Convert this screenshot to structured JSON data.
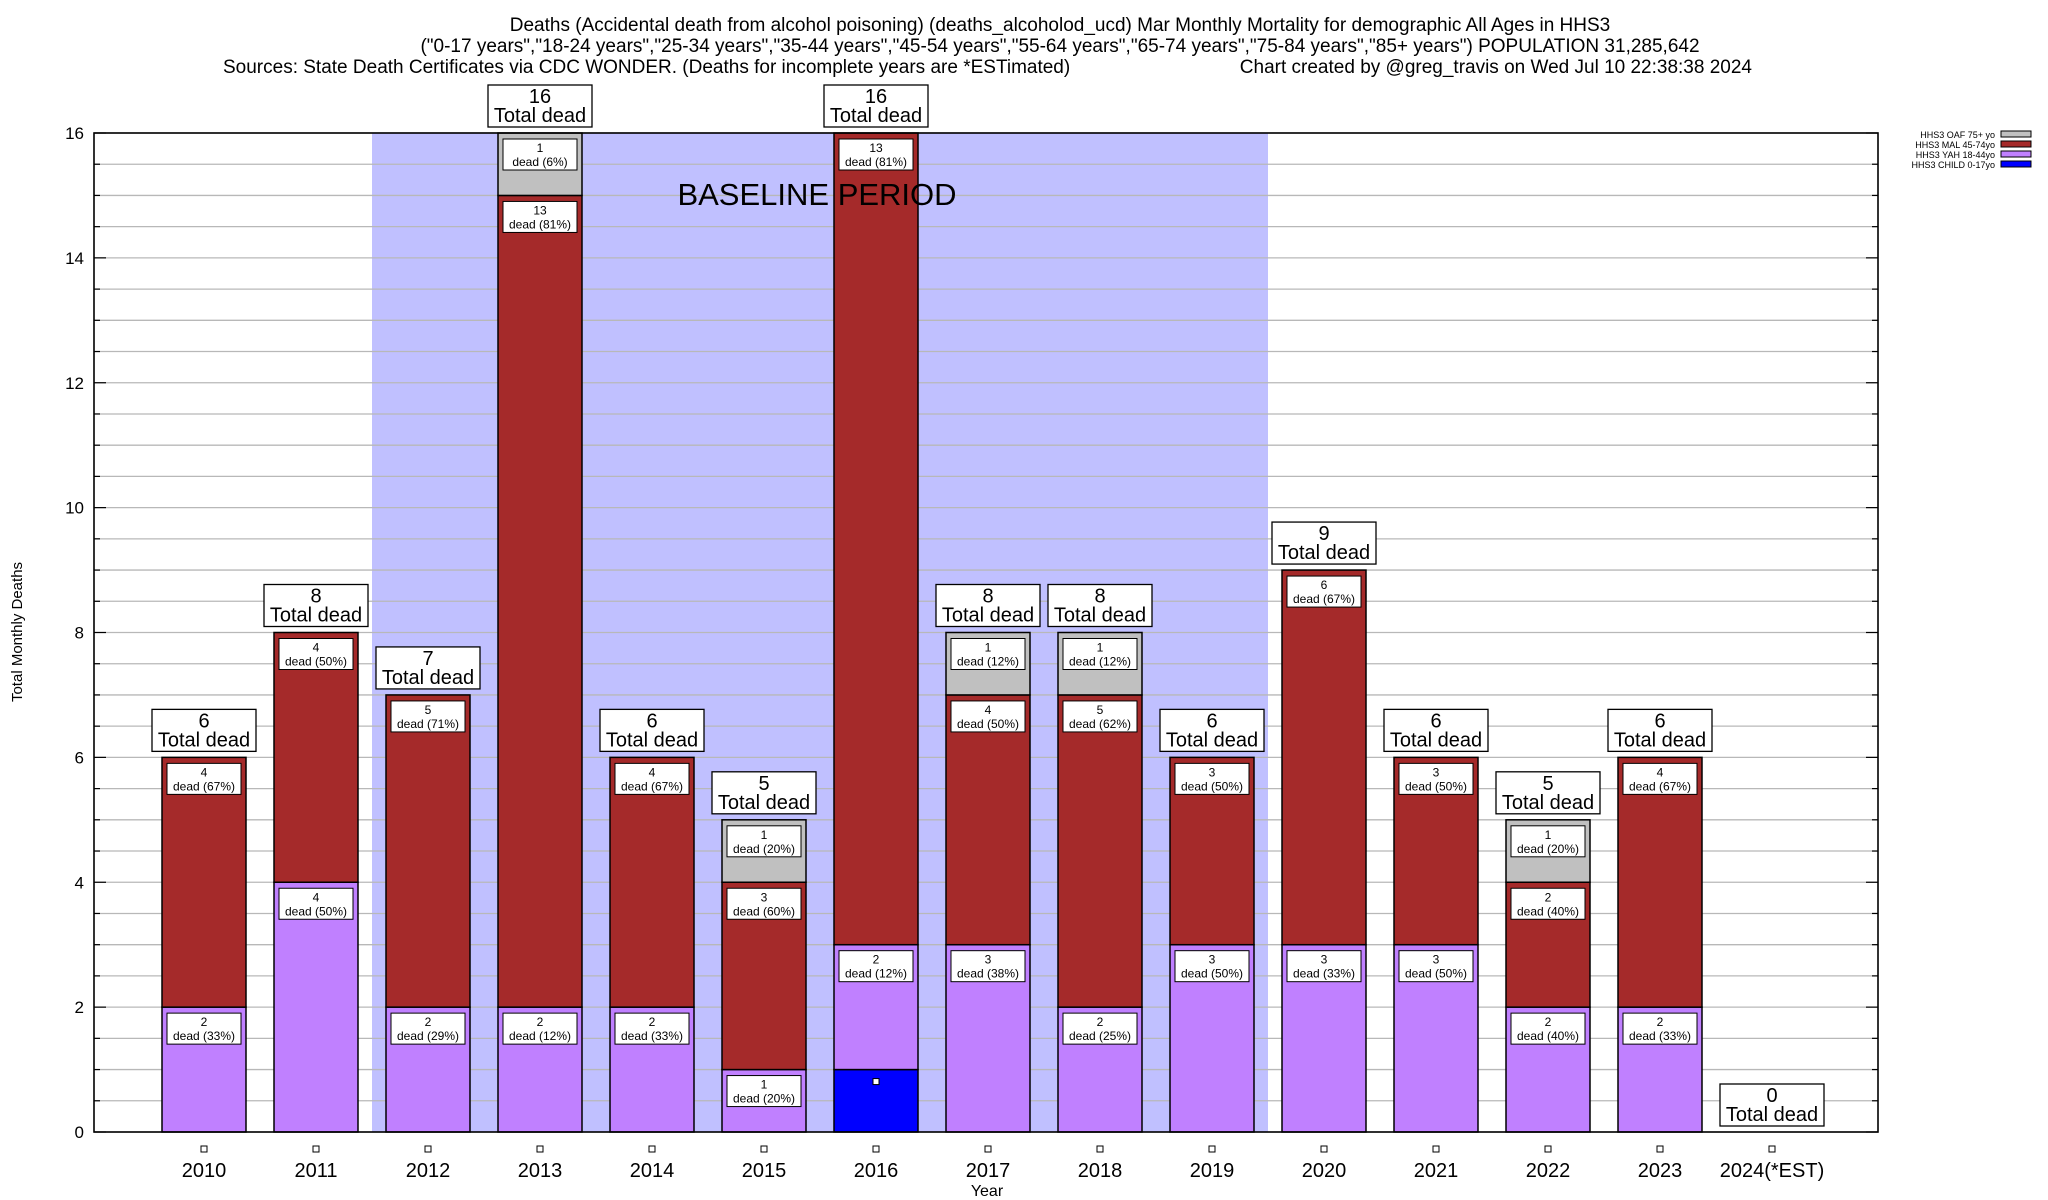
{
  "chart_data": {
    "type": "bar",
    "stacked": true,
    "title": [
      "Deaths (Accidental death from alcohol poisoning) (deaths_alcoholod_ucd) Mar Monthly Mortality for demographic All Ages in HHS3",
      "(\"0-17 years\",\"18-24 years\",\"25-34 years\",\"35-44 years\",\"45-54 years\",\"55-64 years\",\"65-74 years\",\"75-84 years\",\"85+ years\") POPULATION 31,285,642",
      "Sources: State Death Certificates via CDC WONDER. (Deaths for incomplete years are *ESTimated)",
      "Chart created by @greg_travis on Wed Jul 10 22:38:38 2024"
    ],
    "xlabel": "Year",
    "ylabel": "Total Monthly Deaths",
    "ylim": [
      0,
      16
    ],
    "yticks": [
      0,
      2,
      4,
      6,
      8,
      10,
      12,
      14,
      16
    ],
    "grid": true,
    "legend_position": "top-right (outside plot)",
    "categories": [
      "2010",
      "2011",
      "2012",
      "2013",
      "2014",
      "2015",
      "2016",
      "2017",
      "2018",
      "2019",
      "2020",
      "2021",
      "2022",
      "2023",
      "2024(*EST)"
    ],
    "series": [
      {
        "name": "HHS3 CHILD 0-17yo",
        "color": "#0000ff",
        "values": [
          0,
          0,
          0,
          0,
          0,
          0,
          1,
          0,
          0,
          0,
          0,
          0,
          0,
          0,
          0
        ]
      },
      {
        "name": "HHS3 YAH 18-44yo",
        "color": "#c080ff",
        "values": [
          2,
          4,
          2,
          2,
          2,
          1,
          2,
          3,
          2,
          3,
          3,
          3,
          2,
          2,
          0
        ]
      },
      {
        "name": "HHS3 MAL 45-74yo",
        "color": "#a52a2a",
        "values": [
          4,
          4,
          5,
          13,
          4,
          3,
          13,
          4,
          5,
          3,
          6,
          3,
          2,
          4,
          0
        ]
      },
      {
        "name": "HHS3 OAF 75+ yo",
        "color": "#c0c0c0",
        "values": [
          0,
          0,
          0,
          1,
          0,
          1,
          0,
          1,
          1,
          0,
          0,
          0,
          1,
          0,
          0
        ]
      }
    ],
    "segment_labels": [
      [
        null,
        "2\ndead (33%)",
        "4\ndead (67%)",
        null
      ],
      [
        null,
        "4\ndead (50%)",
        "4\ndead (50%)",
        null
      ],
      [
        null,
        "2\ndead (29%)",
        "5\ndead (71%)",
        null
      ],
      [
        null,
        "2\ndead (12%)",
        "13\ndead (81%)",
        "1\ndead (6%)"
      ],
      [
        null,
        "2\ndead (33%)",
        "4\ndead (67%)",
        null
      ],
      [
        null,
        "1\ndead (20%)",
        "3\ndead (60%)",
        "1\ndead (20%)"
      ],
      [
        "",
        "2\ndead (12%)",
        "13\ndead (81%)",
        null
      ],
      [
        null,
        "3\ndead (38%)",
        "4\ndead (50%)",
        "1\ndead (12%)"
      ],
      [
        null,
        "2\ndead (25%)",
        "5\ndead (62%)",
        "1\ndead (12%)"
      ],
      [
        null,
        "3\ndead (50%)",
        "3\ndead (50%)",
        null
      ],
      [
        null,
        "3\ndead (33%)",
        "6\ndead (67%)",
        null
      ],
      [
        null,
        "3\ndead (50%)",
        "3\ndead (50%)",
        null
      ],
      [
        null,
        "2\ndead (40%)",
        "2\ndead (40%)",
        "1\ndead (20%)"
      ],
      [
        null,
        "2\ndead (33%)",
        "4\ndead (67%)",
        null
      ],
      [
        null,
        null,
        null,
        null
      ]
    ],
    "totals": [
      6,
      8,
      7,
      16,
      6,
      5,
      16,
      8,
      8,
      6,
      9,
      6,
      5,
      6,
      0
    ],
    "total_label_suffix": "Total dead",
    "annotations": [
      {
        "text": "BASELINE PERIOD",
        "x_range": [
          "2012",
          "2019"
        ],
        "color": "#c0c0ff"
      }
    ],
    "legend_order": [
      "HHS3 OAF 75+ yo",
      "HHS3 MAL 45-74yo",
      "HHS3 YAH 18-44yo",
      "HHS3 CHILD 0-17yo"
    ]
  }
}
